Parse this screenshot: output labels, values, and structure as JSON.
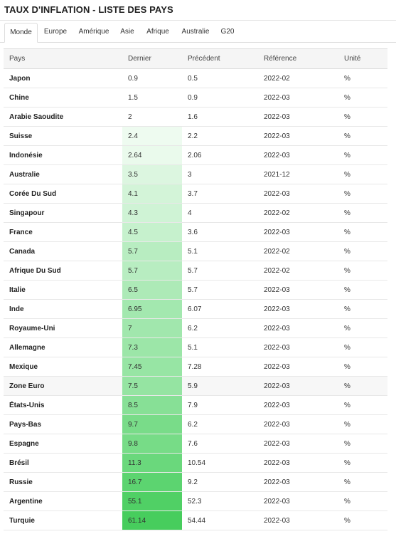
{
  "title": "TAUX D'INFLATION - LISTE DES PAYS",
  "tabs": [
    "Monde",
    "Europe",
    "Amérique",
    "Asie",
    "Afrique",
    "Australie",
    "G20"
  ],
  "active_tab": "Monde",
  "columns": [
    "Pays",
    "Dernier",
    "Précédent",
    "Référence",
    "Unité"
  ],
  "rows": [
    {
      "country": "Japon",
      "last": "0.9",
      "prev": "0.5",
      "ref": "2022-02",
      "unit": "%",
      "shade": "#ffffff"
    },
    {
      "country": "Chine",
      "last": "1.5",
      "prev": "0.9",
      "ref": "2022-03",
      "unit": "%",
      "shade": "#ffffff"
    },
    {
      "country": "Arabie Saoudite",
      "last": "2",
      "prev": "1.6",
      "ref": "2022-03",
      "unit": "%",
      "shade": "#ffffff"
    },
    {
      "country": "Suisse",
      "last": "2.4",
      "prev": "2.2",
      "ref": "2022-03",
      "unit": "%",
      "shade": "#eefbf0"
    },
    {
      "country": "Indonésie",
      "last": "2.64",
      "prev": "2.06",
      "ref": "2022-03",
      "unit": "%",
      "shade": "#eafaec"
    },
    {
      "country": "Australie",
      "last": "3.5",
      "prev": "3",
      "ref": "2021-12",
      "unit": "%",
      "shade": "#dcf6e0"
    },
    {
      "country": "Corée Du Sud",
      "last": "4.1",
      "prev": "3.7",
      "ref": "2022-03",
      "unit": "%",
      "shade": "#d3f4d8"
    },
    {
      "country": "Singapour",
      "last": "4.3",
      "prev": "4",
      "ref": "2022-02",
      "unit": "%",
      "shade": "#cff3d5"
    },
    {
      "country": "France",
      "last": "4.5",
      "prev": "3.6",
      "ref": "2022-03",
      "unit": "%",
      "shade": "#c6f1cd"
    },
    {
      "country": "Canada",
      "last": "5.7",
      "prev": "5.1",
      "ref": "2022-02",
      "unit": "%",
      "shade": "#b8edc1"
    },
    {
      "country": "Afrique Du Sud",
      "last": "5.7",
      "prev": "5.7",
      "ref": "2022-02",
      "unit": "%",
      "shade": "#b8edc1"
    },
    {
      "country": "Italie",
      "last": "6.5",
      "prev": "5.7",
      "ref": "2022-03",
      "unit": "%",
      "shade": "#adeab7"
    },
    {
      "country": "Inde",
      "last": "6.95",
      "prev": "6.07",
      "ref": "2022-03",
      "unit": "%",
      "shade": "#a3e8af"
    },
    {
      "country": "Royaume-Uni",
      "last": "7",
      "prev": "6.2",
      "ref": "2022-03",
      "unit": "%",
      "shade": "#a1e7ad"
    },
    {
      "country": "Allemagne",
      "last": "7.3",
      "prev": "5.1",
      "ref": "2022-03",
      "unit": "%",
      "shade": "#9ce6a8"
    },
    {
      "country": "Mexique",
      "last": "7.45",
      "prev": "7.28",
      "ref": "2022-03",
      "unit": "%",
      "shade": "#97e5a4"
    },
    {
      "country": "Zone Euro",
      "last": "7.5",
      "prev": "5.9",
      "ref": "2022-03",
      "unit": "%",
      "shade": "#95e4a2",
      "highlight": true
    },
    {
      "country": "États-Unis",
      "last": "8.5",
      "prev": "7.9",
      "ref": "2022-03",
      "unit": "%",
      "shade": "#87e096"
    },
    {
      "country": "Pays-Bas",
      "last": "9.7",
      "prev": "6.2",
      "ref": "2022-03",
      "unit": "%",
      "shade": "#79dc89"
    },
    {
      "country": "Espagne",
      "last": "9.8",
      "prev": "7.6",
      "ref": "2022-03",
      "unit": "%",
      "shade": "#77dc87"
    },
    {
      "country": "Brésil",
      "last": "11.3",
      "prev": "10.54",
      "ref": "2022-03",
      "unit": "%",
      "shade": "#6ad87c"
    },
    {
      "country": "Russie",
      "last": "16.7",
      "prev": "9.2",
      "ref": "2022-03",
      "unit": "%",
      "shade": "#5cd470"
    },
    {
      "country": "Argentine",
      "last": "55.1",
      "prev": "52.3",
      "ref": "2022-03",
      "unit": "%",
      "shade": "#50d065"
    },
    {
      "country": "Turquie",
      "last": "61.14",
      "prev": "54.44",
      "ref": "2022-03",
      "unit": "%",
      "shade": "#47cd5d"
    }
  ]
}
